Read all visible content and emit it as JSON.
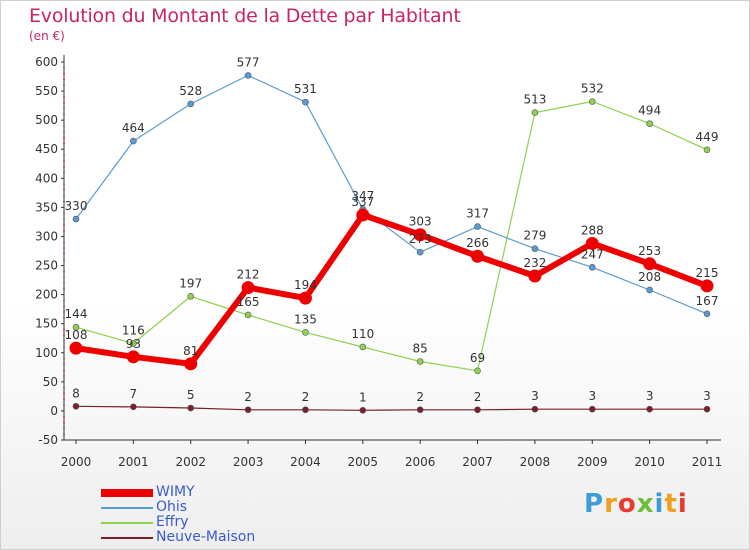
{
  "title": "Evolution du Montant de la Dette par Habitant",
  "unit": "(en €)",
  "logo": "Proxiti",
  "chart_data": {
    "type": "line",
    "title": "Evolution du Montant de la Dette par Habitant",
    "ylabel": "(en €)",
    "xlabel": "",
    "categories": [
      "2000",
      "2001",
      "2002",
      "2003",
      "2004",
      "2005",
      "2006",
      "2007",
      "2008",
      "2009",
      "2010",
      "2011"
    ],
    "ylim": [
      -50,
      600
    ],
    "yticks": [
      "-50",
      "0",
      "50",
      "100",
      "150",
      "200",
      "250",
      "300",
      "350",
      "400",
      "450",
      "500",
      "550",
      "600"
    ],
    "grid": false,
    "legend": "bottom-left",
    "series": [
      {
        "name": "Neuve-Maison",
        "color": "#7a1f2b",
        "values": [
          8,
          7,
          5,
          2,
          2,
          1,
          2,
          2,
          3,
          3,
          3,
          3
        ]
      },
      {
        "name": "Effry",
        "color": "#8fd14f",
        "values": [
          144,
          116,
          197,
          165,
          135,
          110,
          85,
          69,
          513,
          532,
          494,
          449
        ]
      },
      {
        "name": "Ohis",
        "color": "#5b9bd5",
        "values": [
          330,
          464,
          528,
          577,
          531,
          347,
          273,
          317,
          279,
          247,
          208,
          167
        ]
      },
      {
        "name": "WIMY",
        "color": "#ee0000",
        "values": [
          108,
          93,
          81,
          212,
          194,
          337,
          303,
          266,
          232,
          288,
          253,
          215
        ]
      }
    ]
  }
}
